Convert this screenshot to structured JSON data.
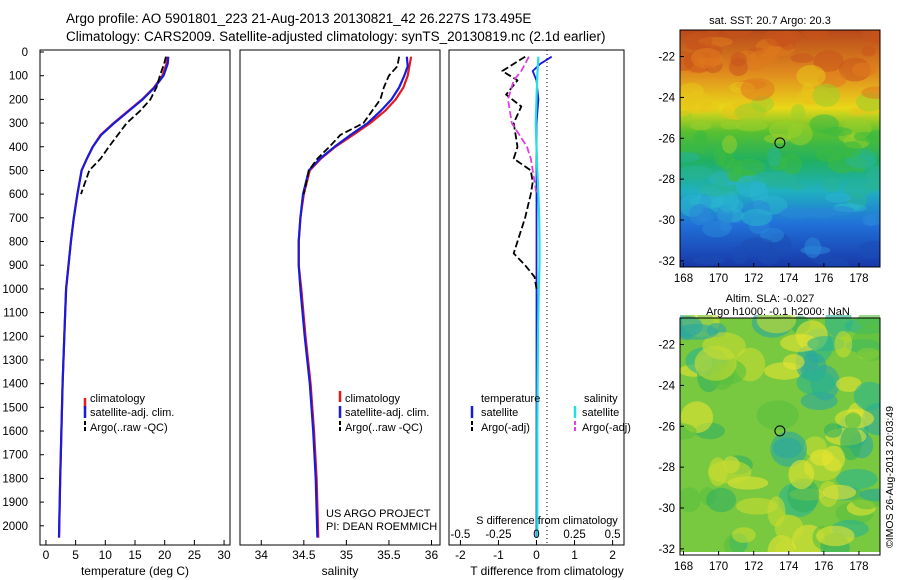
{
  "header": {
    "line1": "Argo profile: AO 5901801_223 21-Aug-2013 20130821_42 26.227S 173.495E",
    "line2": "Climatology: CARS2009. Satellite-adjusted climatology: synTS_20130819.nc (2.1d earlier)"
  },
  "colors": {
    "climatology": "#e41a1c",
    "satellite": "#1a1adc",
    "argo": "#000000",
    "satellite_salinity": "#22e0e0",
    "argo_salinity": "#e040e0"
  },
  "chart_data": [
    {
      "type": "line",
      "panel": "temperature",
      "xlabel": "temperature (deg C)",
      "xlim": [
        -1,
        31
      ],
      "xticks": [
        "0",
        "5",
        "10",
        "15",
        "20",
        "25",
        "30"
      ],
      "ylim": [
        0,
        2060
      ],
      "yticks": [
        "0",
        "100",
        "200",
        "300",
        "400",
        "500",
        "600",
        "700",
        "800",
        "900",
        "1000",
        "1100",
        "1200",
        "1300",
        "1400",
        "1500",
        "1600",
        "1700",
        "1800",
        "1900",
        "2000"
      ],
      "legend": [
        "climatology",
        "satellite-adj. clim.",
        "Argo(..raw -QC)"
      ],
      "series": [
        {
          "name": "climatology",
          "x": [
            20.4,
            20.3,
            19.6,
            18.2,
            16.2,
            13.8,
            11.4,
            9.2,
            7.9,
            6.9,
            6.0,
            5.3,
            4.7,
            4.2,
            3.8,
            3.4,
            3.1,
            2.8,
            2.6,
            2.4,
            2.2
          ],
          "y": [
            20,
            50,
            100,
            150,
            200,
            250,
            300,
            350,
            400,
            450,
            500,
            600,
            700,
            800,
            900,
            1000,
            1200,
            1400,
            1600,
            1800,
            2050
          ]
        },
        {
          "name": "satellite-adj. clim.",
          "x": [
            20.6,
            20.5,
            19.8,
            18.3,
            16.3,
            13.9,
            11.5,
            9.3,
            7.9,
            6.9,
            6.0,
            5.3,
            4.7,
            4.2,
            3.8,
            3.4,
            3.1,
            2.8,
            2.6,
            2.4,
            2.2
          ],
          "y": [
            20,
            50,
            100,
            150,
            200,
            250,
            300,
            350,
            400,
            450,
            500,
            600,
            700,
            800,
            900,
            1000,
            1200,
            1400,
            1600,
            1800,
            2050
          ]
        },
        {
          "name": "Argo(..raw -QC)",
          "x": [
            20.2,
            19.9,
            19.2,
            18.6,
            17.6,
            15.8,
            13.6,
            12.1,
            10.6,
            9.2,
            7.3,
            5.9
          ],
          "y": [
            20,
            50,
            100,
            150,
            200,
            250,
            300,
            350,
            400,
            450,
            500,
            600
          ]
        }
      ]
    },
    {
      "type": "line",
      "panel": "salinity",
      "xlabel": "salinity",
      "xlim": [
        33.75,
        36.1
      ],
      "xticks": [
        "34",
        "34.5",
        "35",
        "35.5",
        "36"
      ],
      "ylim": [
        0,
        2060
      ],
      "legend": [
        "climatology",
        "satellite-adj. clim.",
        "Argo(..raw -QC)"
      ],
      "annotations": [
        "US ARGO PROJECT",
        "PI: DEAN ROEMMICH"
      ],
      "series": [
        {
          "name": "climatology",
          "x": [
            35.76,
            35.74,
            35.72,
            35.67,
            35.58,
            35.45,
            35.28,
            35.08,
            34.87,
            34.7,
            34.57,
            34.5,
            34.46,
            34.44,
            34.44,
            34.47,
            34.52,
            34.58,
            34.62,
            34.65,
            34.67
          ],
          "y": [
            20,
            60,
            100,
            150,
            200,
            250,
            300,
            350,
            400,
            450,
            500,
            600,
            700,
            800,
            900,
            1000,
            1200,
            1400,
            1600,
            1800,
            2050
          ]
        },
        {
          "name": "satellite-adj. clim.",
          "x": [
            35.71,
            35.72,
            35.68,
            35.62,
            35.53,
            35.4,
            35.25,
            35.05,
            34.86,
            34.69,
            34.56,
            34.49,
            34.46,
            34.44,
            34.44,
            34.46,
            34.51,
            34.57,
            34.61,
            34.64,
            34.66
          ],
          "y": [
            20,
            60,
            100,
            150,
            200,
            250,
            300,
            350,
            400,
            450,
            500,
            600,
            700,
            800,
            900,
            1000,
            1200,
            1400,
            1600,
            1800,
            2050
          ]
        },
        {
          "name": "Argo(..raw -QC)",
          "x": [
            35.62,
            35.6,
            35.5,
            35.44,
            35.4,
            35.3,
            35.2,
            34.93,
            34.8,
            34.66,
            34.56,
            34.5
          ],
          "y": [
            20,
            60,
            100,
            150,
            200,
            250,
            300,
            350,
            400,
            450,
            500,
            600
          ]
        }
      ]
    },
    {
      "type": "line",
      "panel": "difference",
      "xlabel": "T difference from climatology",
      "xlabel2": "S difference from climatology",
      "xlim": [
        -2.3,
        2.3
      ],
      "xticks": [
        "-2",
        "-1",
        "0",
        "1",
        "2"
      ],
      "xticks2": [
        "-0.5",
        "-0.25",
        "0",
        "0.25",
        "0.5"
      ],
      "ylim": [
        0,
        2060
      ],
      "legend_titles": [
        "temperature",
        "salinity"
      ],
      "legend": [
        "satellite",
        "Argo(-adj)",
        "satellite",
        "Argo(-adj)"
      ],
      "series": [
        {
          "name": "temperature satellite",
          "x": [
            0.4,
            0.1,
            -0.1,
            0.0,
            0.05,
            0.0,
            0.0,
            0.0,
            0.0,
            0.0,
            0.0,
            0.0,
            0.0,
            0.0,
            0.0,
            0.0,
            0.0,
            0.0
          ],
          "y": [
            20,
            50,
            80,
            120,
            200,
            300,
            400,
            500,
            600,
            700,
            800,
            900,
            1000,
            1100,
            1200,
            1300,
            1600,
            2050
          ]
        },
        {
          "name": "temperature Argo(-adj)",
          "x": [
            -0.3,
            -0.9,
            -0.5,
            -0.8,
            -0.4,
            -0.6,
            -0.55,
            -0.5,
            -0.6,
            -0.15,
            -0.1,
            -0.15,
            -0.3,
            -0.5,
            -0.6,
            -0.3,
            -0.05,
            0.0
          ],
          "y": [
            20,
            80,
            120,
            180,
            230,
            300,
            350,
            400,
            450,
            500,
            550,
            600,
            700,
            800,
            850,
            900,
            950,
            1000
          ]
        },
        {
          "name": "salinity satellite",
          "x": [
            0.05,
            0.02,
            0.0,
            -0.02,
            0.0,
            0.02,
            0.05,
            0.07,
            0.08,
            0.08,
            0.06,
            0.05,
            0.04,
            0.03,
            0.02,
            0.02,
            0.02
          ],
          "y": [
            20,
            100,
            200,
            300,
            400,
            500,
            600,
            700,
            800,
            900,
            1000,
            1100,
            1200,
            1400,
            1600,
            1800,
            2050
          ]
        },
        {
          "name": "salinity Argo(-adj)",
          "x": [
            -0.2,
            -0.4,
            -0.6,
            -0.75,
            -0.65,
            -0.45,
            -0.25,
            -0.15,
            -0.1,
            -0.05,
            0.0
          ],
          "y": [
            20,
            80,
            120,
            200,
            300,
            350,
            400,
            450,
            500,
            550,
            600
          ]
        }
      ]
    },
    {
      "type": "heatmap",
      "panel": "sst_map",
      "title": "sat. SST: 20.7 Argo: 20.3",
      "xlim": [
        167.8,
        179.2
      ],
      "ylim": [
        -32.3,
        -20.7
      ],
      "xticks": [
        "168",
        "170",
        "172",
        "174",
        "176",
        "178"
      ],
      "yticks": [
        "-22",
        "-24",
        "-26",
        "-28",
        "-30",
        "-32"
      ],
      "marker": {
        "lon": 173.495,
        "lat": -26.227
      }
    },
    {
      "type": "heatmap",
      "panel": "sla_map",
      "title": "Altim. SLA: -0.027",
      "subtitle": "Argo h1000: -0.1 h2000: NaN",
      "xlim": [
        167.8,
        179.2
      ],
      "ylim": [
        -32.3,
        -20.7
      ],
      "xticks": [
        "168",
        "170",
        "172",
        "174",
        "176",
        "178"
      ],
      "yticks": [
        "-22",
        "-24",
        "-26",
        "-28",
        "-30",
        "-32"
      ],
      "marker": {
        "lon": 173.495,
        "lat": -26.227
      }
    }
  ],
  "footer": {
    "stamp": "©IMOS 26-Aug-2013 20:03:49"
  }
}
